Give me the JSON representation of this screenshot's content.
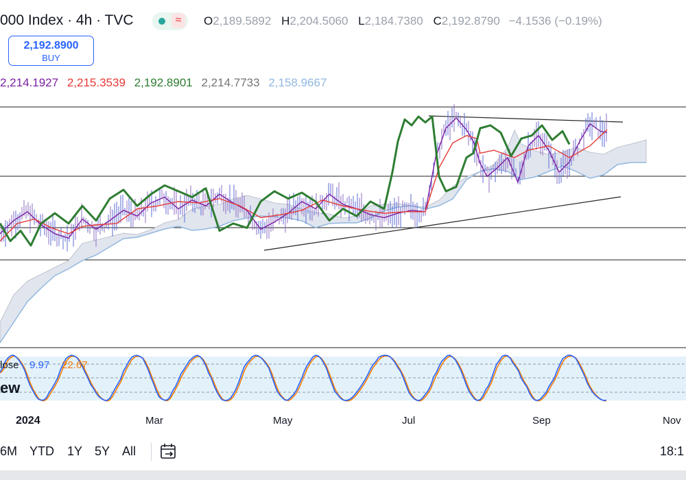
{
  "header": {
    "title": "000 Index · 4h · TVC",
    "ohlc": [
      {
        "key": "O",
        "value": "2,189.5892"
      },
      {
        "key": "H",
        "value": "2,204.5060"
      },
      {
        "key": "L",
        "value": "2,184.7380"
      },
      {
        "key": "C",
        "value": "2,192.8790"
      }
    ],
    "change": "−4.1536 (−0.19%)",
    "wave_symbol": "≈"
  },
  "buy_box": {
    "price": "2,192.8900",
    "label": "BUY"
  },
  "indicator_values": [
    {
      "value": "2,214.1927",
      "color": "#7b1fa2"
    },
    {
      "value": "2,215.3539",
      "color": "#e53935"
    },
    {
      "value": "2,192.8901",
      "color": "#2e7d32"
    },
    {
      "value": "2,214.7733",
      "color": "#757575"
    },
    {
      "value": "2,158.9667",
      "color": "#90b8e0"
    }
  ],
  "oscillator": {
    "label": "lose",
    "value1": "9.97",
    "value1_color": "#2962ff",
    "value2": "22.67",
    "value2_color": "#f57c00",
    "overlay_label": "ew"
  },
  "time_axis": [
    "2024",
    "Mar",
    "May",
    "Jul",
    "Sep",
    "Nov"
  ],
  "toolbar": {
    "ranges": [
      "6M",
      "YTD",
      "1Y",
      "5Y",
      "All"
    ],
    "calendar_icon": "calendar-range-icon",
    "time": "18:1"
  },
  "chart_data": {
    "type": "line",
    "title": "",
    "x_axis": [
      "2024",
      "Mar",
      "May",
      "Jul",
      "Sep",
      "Nov"
    ],
    "price_range": [
      2110,
      2220
    ],
    "series": [
      {
        "name": "",
        "color": "#7b1fa2",
        "points": [
          [
            0,
            2133
          ],
          [
            20,
            2142
          ],
          [
            40,
            2148
          ],
          [
            60,
            2139
          ],
          [
            80,
            2133
          ],
          [
            100,
            2130
          ],
          [
            120,
            2143
          ],
          [
            140,
            2136
          ],
          [
            160,
            2142
          ],
          [
            180,
            2149
          ],
          [
            200,
            2145
          ],
          [
            220,
            2154
          ],
          [
            240,
            2158
          ],
          [
            260,
            2150
          ],
          [
            280,
            2156
          ],
          [
            300,
            2152
          ],
          [
            320,
            2160
          ],
          [
            340,
            2154
          ],
          [
            360,
            2149
          ],
          [
            380,
            2136
          ],
          [
            400,
            2141
          ],
          [
            420,
            2147
          ],
          [
            440,
            2155
          ],
          [
            460,
            2150
          ],
          [
            480,
            2160
          ],
          [
            500,
            2153
          ],
          [
            520,
            2150
          ],
          [
            540,
            2146
          ],
          [
            560,
            2144
          ],
          [
            580,
            2147
          ],
          [
            600,
            2149
          ],
          [
            620,
            2148
          ],
          [
            635,
            2185
          ],
          [
            650,
            2205
          ],
          [
            665,
            2212
          ],
          [
            680,
            2204
          ],
          [
            690,
            2196
          ],
          [
            700,
            2181
          ],
          [
            710,
            2172
          ],
          [
            725,
            2178
          ],
          [
            740,
            2185
          ],
          [
            755,
            2168
          ],
          [
            770,
            2193
          ],
          [
            785,
            2200
          ],
          [
            800,
            2190
          ],
          [
            815,
            2175
          ],
          [
            830,
            2182
          ],
          [
            845,
            2196
          ],
          [
            860,
            2208
          ],
          [
            875,
            2203
          ],
          [
            885,
            2202
          ]
        ]
      },
      {
        "name": "",
        "color": "#e53935",
        "points": [
          [
            0,
            2128
          ],
          [
            25,
            2140
          ],
          [
            50,
            2143
          ],
          [
            75,
            2137
          ],
          [
            100,
            2133
          ],
          [
            120,
            2138
          ],
          [
            140,
            2139
          ],
          [
            170,
            2140
          ],
          [
            200,
            2150
          ],
          [
            230,
            2152
          ],
          [
            260,
            2155
          ],
          [
            290,
            2154
          ],
          [
            320,
            2157
          ],
          [
            350,
            2152
          ],
          [
            380,
            2144
          ],
          [
            410,
            2146
          ],
          [
            440,
            2149
          ],
          [
            470,
            2156
          ],
          [
            500,
            2152
          ],
          [
            530,
            2149
          ],
          [
            560,
            2147
          ],
          [
            590,
            2148
          ],
          [
            620,
            2148
          ],
          [
            640,
            2178
          ],
          [
            660,
            2195
          ],
          [
            680,
            2200
          ],
          [
            695,
            2198
          ],
          [
            700,
            2188
          ],
          [
            720,
            2190
          ],
          [
            750,
            2185
          ],
          [
            770,
            2190
          ],
          [
            800,
            2193
          ],
          [
            830,
            2185
          ],
          [
            860,
            2193
          ],
          [
            885,
            2204
          ]
        ]
      },
      {
        "name": "",
        "color": "#2e7d32",
        "points": [
          [
            0,
            2140
          ],
          [
            15,
            2128
          ],
          [
            30,
            2135
          ],
          [
            45,
            2125
          ],
          [
            60,
            2140
          ],
          [
            80,
            2147
          ],
          [
            100,
            2140
          ],
          [
            120,
            2152
          ],
          [
            140,
            2142
          ],
          [
            160,
            2157
          ],
          [
            180,
            2163
          ],
          [
            200,
            2152
          ],
          [
            220,
            2160
          ],
          [
            240,
            2166
          ],
          [
            260,
            2162
          ],
          [
            280,
            2158
          ],
          [
            300,
            2164
          ],
          [
            320,
            2135
          ],
          [
            340,
            2140
          ],
          [
            360,
            2137
          ],
          [
            380,
            2155
          ],
          [
            400,
            2162
          ],
          [
            420,
            2157
          ],
          [
            440,
            2161
          ],
          [
            460,
            2155
          ],
          [
            480,
            2142
          ],
          [
            500,
            2150
          ],
          [
            520,
            2145
          ],
          [
            540,
            2155
          ],
          [
            560,
            2150
          ],
          [
            572,
            2175
          ],
          [
            580,
            2196
          ],
          [
            590,
            2211
          ],
          [
            600,
            2207
          ],
          [
            610,
            2213
          ],
          [
            620,
            2209
          ],
          [
            630,
            2213
          ],
          [
            640,
            2172
          ],
          [
            650,
            2162
          ],
          [
            665,
            2165
          ],
          [
            680,
            2185
          ],
          [
            690,
            2188
          ],
          [
            700,
            2205
          ],
          [
            715,
            2207
          ],
          [
            730,
            2202
          ],
          [
            745,
            2186
          ],
          [
            760,
            2198
          ],
          [
            775,
            2200
          ],
          [
            790,
            2207
          ],
          [
            805,
            2197
          ],
          [
            820,
            2203
          ],
          [
            830,
            2194
          ]
        ]
      }
    ],
    "cloud": {
      "fill": "#e1e5ee",
      "edge_color": "#90b8e0"
    },
    "oscillator_series": [
      {
        "name": "",
        "color": "#2962ff"
      },
      {
        "name": "",
        "color": "#f57c00"
      }
    ]
  }
}
